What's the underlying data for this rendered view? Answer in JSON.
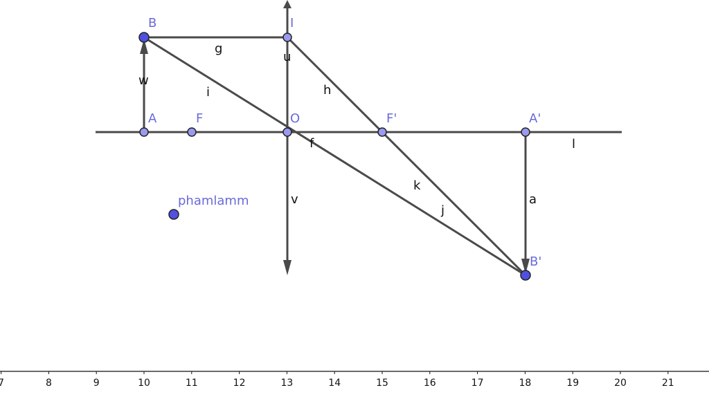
{
  "points": {
    "B": "B",
    "I": "I",
    "A": "A",
    "F": "F",
    "O": "O",
    "F_prime": "F'",
    "A_prime": "A'",
    "B_prime": "B'",
    "free": "phamlamm"
  },
  "segments": {
    "g": "g",
    "u": "u",
    "i": "i",
    "h": "h",
    "f": "f",
    "l": "l",
    "k": "k",
    "j": "j",
    "a": "a",
    "v": "v",
    "w": "w"
  },
  "x_axis": {
    "ticks": [
      7,
      8,
      9,
      10,
      11,
      12,
      13,
      14,
      15,
      16,
      17,
      18,
      19,
      20,
      21
    ]
  }
}
